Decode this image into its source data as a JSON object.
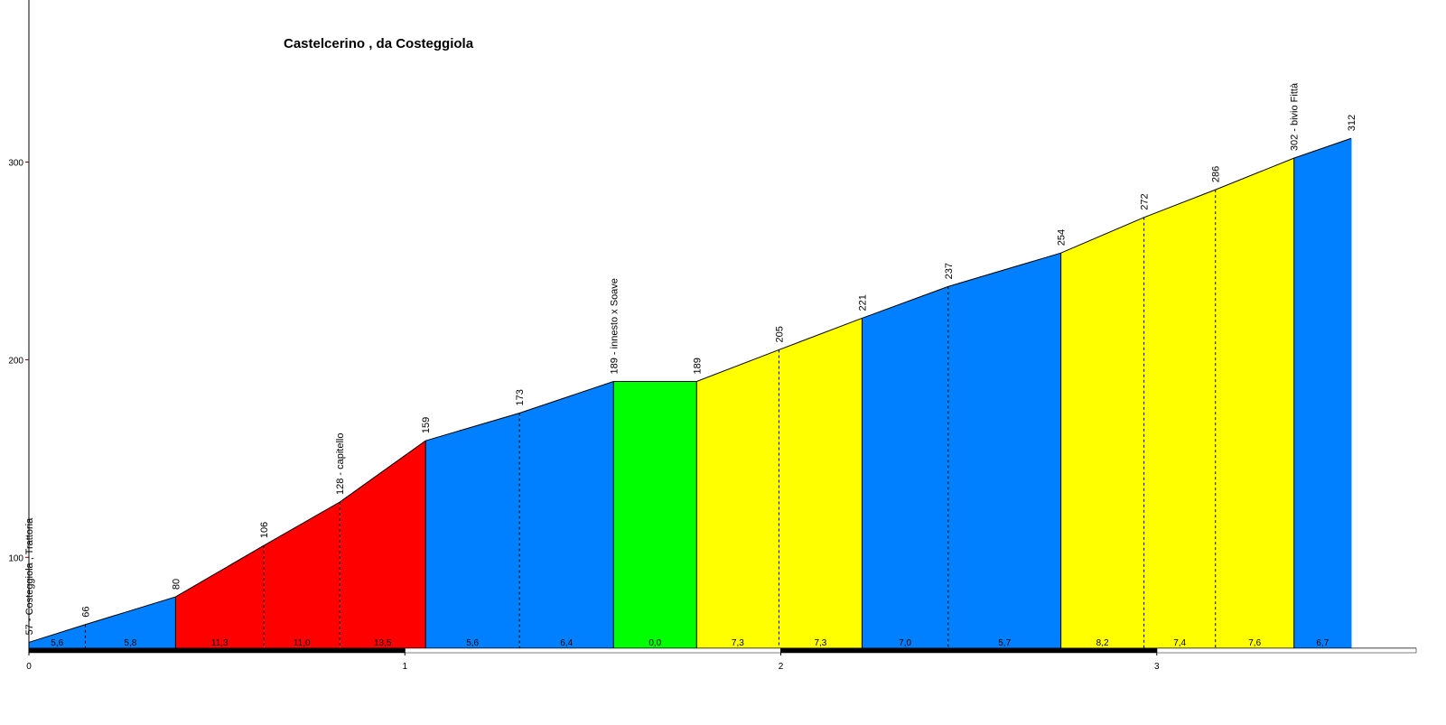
{
  "chart_data": {
    "type": "area",
    "title": "Castelcerino , da Costeggiola",
    "x": [
      0,
      0.15,
      0.39,
      0.625,
      0.827,
      1.055,
      1.305,
      1.555,
      1.776,
      1.995,
      2.216,
      2.445,
      2.745,
      2.966,
      3.156,
      3.365,
      3.517
    ],
    "values": [
      57,
      66,
      80,
      106,
      128,
      159,
      173,
      189,
      189,
      205,
      221,
      237,
      254,
      272,
      286,
      302,
      312
    ],
    "value_labels": [
      "57 - Costeggiola , Trattoria",
      "66",
      "80",
      "106",
      "128 - capitello",
      "159",
      "173",
      "189 - innesto x Soave",
      "189",
      "205",
      "221",
      "237",
      "254",
      "272",
      "286",
      "302 - bivio Fittà",
      "312"
    ],
    "gradient_values": [
      5.6,
      5.8,
      11.3,
      11.0,
      13.5,
      5.6,
      6.4,
      0.0,
      7.3,
      7.3,
      7.0,
      5.7,
      8.2,
      7.4,
      7.6,
      6.7
    ],
    "gradient_labels": [
      "5,6",
      "5,8",
      "11,3",
      "11,0",
      "13,5",
      "5,6",
      "6,4",
      "0,0",
      "7,3",
      "7,3",
      "7,0",
      "5,7",
      "8,2",
      "7,4",
      "7,6",
      "6,7"
    ],
    "segment_colors": [
      "#0080ff",
      "#0080ff",
      "#ff0000",
      "#ff0000",
      "#ff0000",
      "#0080ff",
      "#0080ff",
      "#00ff00",
      "#ffff00",
      "#ffff00",
      "#0080ff",
      "#0080ff",
      "#ffff00",
      "#ffff00",
      "#ffff00",
      "#0080ff"
    ],
    "xlim": [
      0,
      3.69
    ],
    "xticks": [
      0,
      1,
      2,
      3
    ],
    "ylim": [
      54,
      382
    ],
    "yticks": [
      100,
      200,
      300
    ]
  }
}
